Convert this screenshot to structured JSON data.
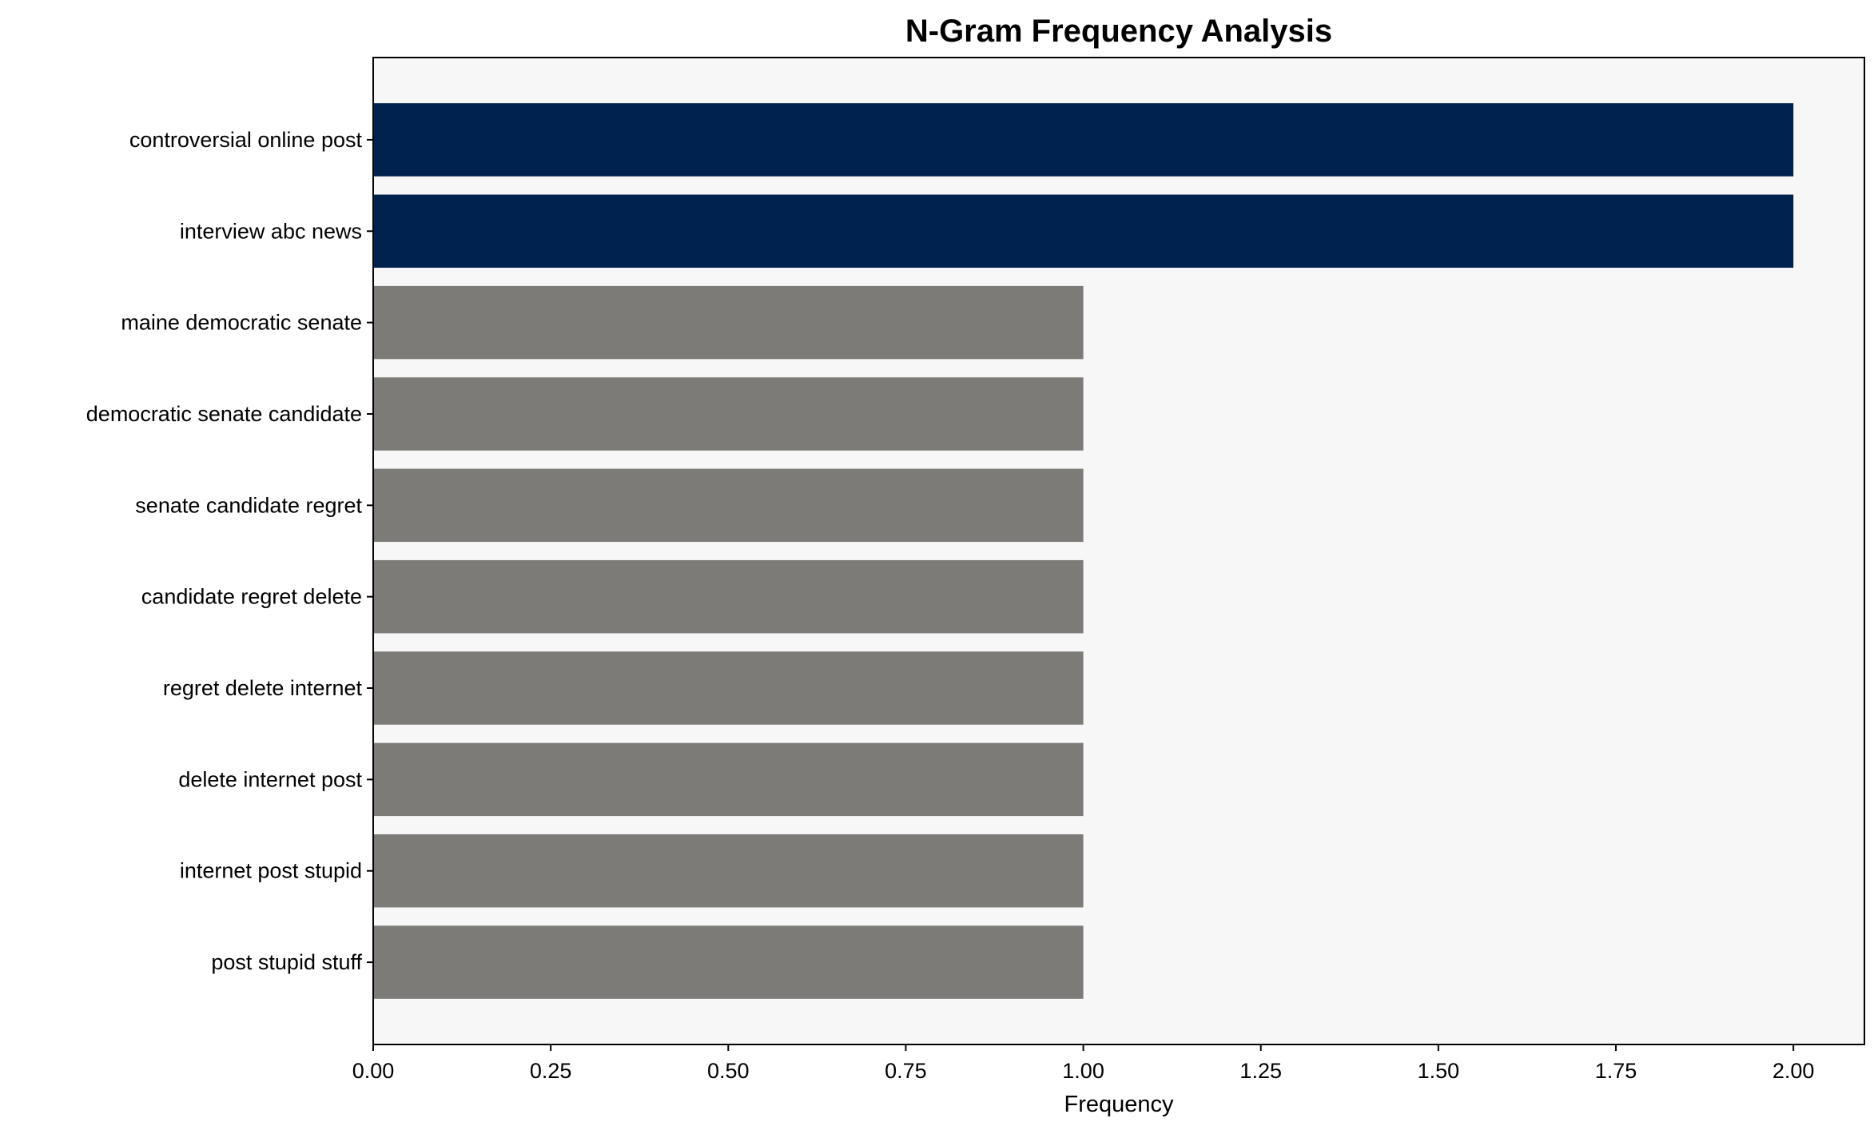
{
  "chart_data": {
    "type": "bar",
    "orientation": "horizontal",
    "title": "N-Gram Frequency Analysis",
    "xlabel": "Frequency",
    "ylabel": "",
    "xlim": [
      0,
      2.1
    ],
    "xticks": [
      "0.00",
      "0.25",
      "0.50",
      "0.75",
      "1.00",
      "1.25",
      "1.50",
      "1.75",
      "2.00"
    ],
    "grid": false,
    "categories": [
      "controversial online post",
      "interview abc news",
      "maine democratic senate",
      "democratic senate candidate",
      "senate candidate regret",
      "candidate regret delete",
      "regret delete internet",
      "delete internet post",
      "internet post stupid",
      "post stupid stuff"
    ],
    "values": [
      2,
      2,
      1,
      1,
      1,
      1,
      1,
      1,
      1,
      1
    ],
    "colors": {
      "highlight": "#00224e",
      "default": "#7c7b78",
      "plot_background": "#f7f7f7"
    }
  }
}
